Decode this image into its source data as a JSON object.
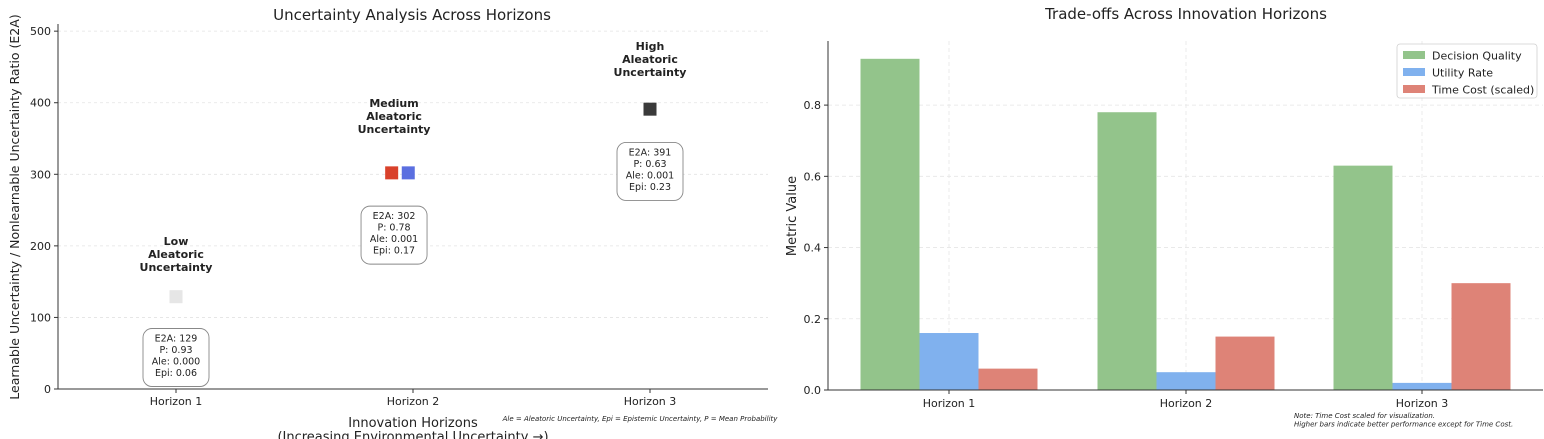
{
  "chart_data": [
    {
      "type": "scatter",
      "title": "Uncertainty Analysis Across Horizons",
      "xlabel": "Innovation Horizons",
      "xlabel_sub": "(Increasing Environmental Uncertainty →)",
      "ylabel": "Learnable Uncertainty / Nonlearnable Uncertainty Ratio (E2A)",
      "categories": [
        "Horizon 1",
        "Horizon 2",
        "Horizon 3"
      ],
      "ylim": [
        0,
        510
      ],
      "yticks": [
        0,
        100,
        200,
        300,
        400,
        500
      ],
      "grid": true,
      "points": [
        {
          "category": "Horizon 1",
          "x": 1,
          "y": 129,
          "color": "#e6e6e6"
        },
        {
          "category": "Horizon 2",
          "x": 1.91,
          "y": 302,
          "color": "#d9412b"
        },
        {
          "category": "Horizon 2",
          "x": 1.98,
          "y": 302,
          "color": "#5b6fe0"
        },
        {
          "category": "Horizon 3",
          "x": 3,
          "y": 391,
          "color": "#3a3a3a"
        }
      ],
      "labels": [
        {
          "x": 1,
          "y": 165,
          "lines": [
            "Low",
            "Aleatoric",
            "Uncertainty"
          ]
        },
        {
          "x": 1.92,
          "y": 358,
          "lines": [
            "Medium",
            "Aleatoric",
            "Uncertainty"
          ]
        },
        {
          "x": 3,
          "y": 437,
          "lines": [
            "High",
            "Aleatoric",
            "Uncertainty"
          ]
        }
      ],
      "info_boxes": [
        {
          "x": 1,
          "y": 44,
          "lines": [
            "E2A: 129",
            "P: 0.93",
            "Ale: 0.000",
            "Epi: 0.06"
          ]
        },
        {
          "x": 1.92,
          "y": 215,
          "lines": [
            "E2A: 302",
            "P: 0.78",
            "Ale: 0.001",
            "Epi: 0.17"
          ]
        },
        {
          "x": 3,
          "y": 304,
          "lines": [
            "E2A: 391",
            "P: 0.63",
            "Ale: 0.001",
            "Epi: 0.23"
          ]
        }
      ],
      "footnote": "Ale = Aleatoric Uncertainty, Epi = Epistemic Uncertainty, P = Mean Probability"
    },
    {
      "type": "bar",
      "title": "Trade-offs Across Innovation Horizons",
      "ylabel": "Metric Value",
      "categories": [
        "Horizon 1",
        "Horizon 2",
        "Horizon 3"
      ],
      "ylim": [
        0,
        0.98
      ],
      "yticks": [
        0.0,
        0.2,
        0.4,
        0.6,
        0.8
      ],
      "grid": true,
      "legend_position": "top-right",
      "series": [
        {
          "name": "Decision Quality",
          "values": [
            0.93,
            0.78,
            0.63
          ],
          "color": "#93c48b"
        },
        {
          "name": "Utility Rate",
          "values": [
            0.16,
            0.05,
            0.02
          ],
          "color": "#80b1ee"
        },
        {
          "name": "Time Cost (scaled)",
          "values": [
            0.06,
            0.15,
            0.3
          ],
          "color": "#de8377"
        }
      ],
      "note_lines": [
        "Note: Time Cost scaled for visualization.",
        "Higher bars indicate better performance except for Time Cost."
      ]
    }
  ]
}
